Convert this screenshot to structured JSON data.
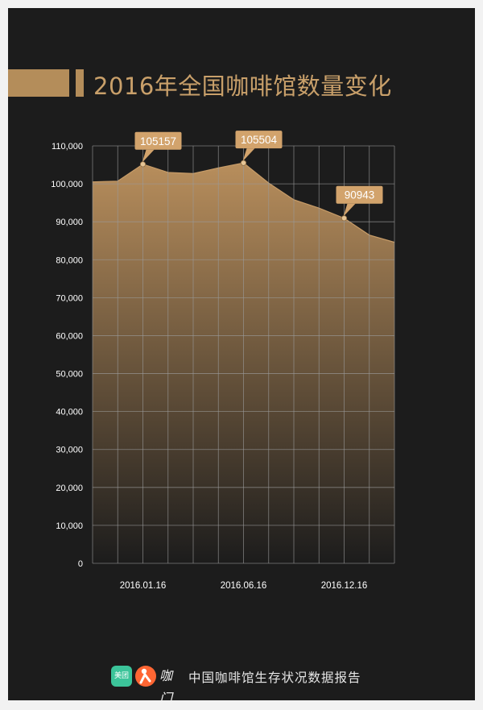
{
  "header": {
    "title": "2016年全国咖啡馆数量变化"
  },
  "chart_data": {
    "type": "area",
    "title": "2016年全国咖啡馆数量变化",
    "xlabel": "",
    "ylabel": "",
    "ylim": [
      0,
      110000
    ],
    "yticks": [
      "0",
      "10,000",
      "20,000",
      "30,000",
      "40,000",
      "50,000",
      "60,000",
      "70,000",
      "80,000",
      "90,000",
      "100,000",
      "110,000"
    ],
    "xtick_labels": [
      "2016.01.16",
      "2016.06.16",
      "2016.12.16"
    ],
    "grid": true,
    "x": [
      0,
      1,
      2,
      3,
      4,
      5,
      6,
      7,
      8,
      9,
      10,
      11,
      12
    ],
    "values": [
      100500,
      100700,
      105157,
      103000,
      102700,
      104200,
      105504,
      100200,
      95800,
      93600,
      90943,
      86500,
      84600
    ],
    "annotations": [
      {
        "label": "105157",
        "index": 2
      },
      {
        "label": "105504",
        "index": 6
      },
      {
        "label": "90943",
        "index": 10
      }
    ],
    "colors": {
      "area_top": "#b88e5c",
      "area_bottom": "#1c1c1c",
      "grid": "#9a9a9a",
      "callout": "#d2a36c",
      "callout_text": "#ffffff",
      "axis_text": "#ffffff"
    }
  },
  "footer": {
    "logo_meituan": "美团",
    "logo_kafei": "咖门",
    "text": "中国咖啡馆生存状况数据报告"
  }
}
